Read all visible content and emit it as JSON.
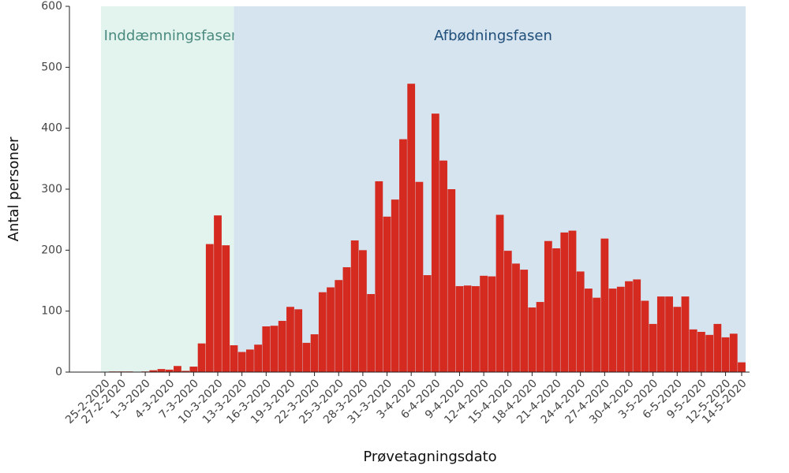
{
  "chart_data": {
    "type": "bar",
    "x_label": "Prøvetagningsdato",
    "y_label": "Antal personer",
    "color": "#d42a20",
    "phases": [
      {
        "label": "Inddæmningsfasen",
        "color": "#e3f4ef",
        "text_color": "#4a8a7e"
      },
      {
        "label": "Afbødningsfasen",
        "color": "#d6e4f0",
        "text_color": "#1f4e79"
      }
    ],
    "categories": [
      "25-2-2020",
      null,
      "27-2-2020",
      null,
      null,
      "1-3-2020",
      null,
      null,
      "4-3-2020",
      null,
      null,
      "7-3-2020",
      null,
      null,
      "10-3-2020",
      null,
      null,
      "13-3-2020",
      null,
      null,
      "16-3-2020",
      null,
      null,
      "19-3-2020",
      null,
      null,
      "22-3-2020",
      null,
      null,
      "25-3-2020",
      null,
      null,
      "28-3-2020",
      null,
      null,
      "31-3-2020",
      null,
      null,
      "3-4-2020",
      null,
      null,
      "6-4-2020",
      null,
      null,
      "9-4-2020",
      null,
      null,
      "12-4-2020",
      null,
      null,
      "15-4-2020",
      null,
      null,
      "18-4-2020",
      null,
      null,
      "21-4-2020",
      null,
      null,
      "24-4-2020",
      null,
      null,
      "27-4-2020",
      null,
      null,
      "30-4-2020",
      null,
      null,
      "3-5-2020",
      null,
      null,
      "6-5-2020",
      null,
      null,
      "9-5-2020",
      null,
      null,
      "12-5-2020",
      null,
      "14-5-2020"
    ],
    "values": [
      0,
      1,
      1,
      1,
      0,
      1,
      3,
      5,
      4,
      10,
      2,
      9,
      47,
      210,
      257,
      208,
      44,
      33,
      37,
      45,
      75,
      76,
      84,
      107,
      103,
      48,
      62,
      131,
      139,
      151,
      172,
      216,
      200,
      128,
      313,
      255,
      283,
      382,
      473,
      312,
      159,
      424,
      347,
      300,
      141,
      142,
      141,
      158,
      157,
      258,
      199,
      178,
      168,
      106,
      115,
      215,
      203,
      229,
      232,
      165,
      137,
      122,
      219,
      137,
      140,
      149,
      152,
      117,
      79,
      124,
      124,
      107,
      124,
      70,
      66,
      61,
      79,
      57,
      63,
      16
    ],
    "ylim": [
      0,
      600
    ],
    "yticks": [
      0,
      100,
      200,
      300,
      400,
      500,
      600
    ],
    "grid": false
  }
}
